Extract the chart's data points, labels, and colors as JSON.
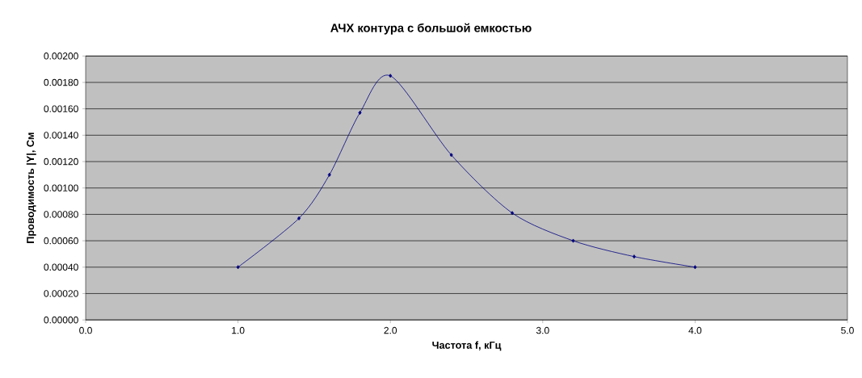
{
  "chart_data": {
    "type": "line",
    "title": "АЧХ контура с большой емкостью",
    "xlabel": "Частота f, кГц",
    "ylabel": "Проводимость |Y|, См",
    "x": [
      1.0,
      1.4,
      1.6,
      1.8,
      2.0,
      2.4,
      2.8,
      3.2,
      3.6,
      4.0
    ],
    "values": [
      0.0004,
      0.00077,
      0.0011,
      0.00157,
      0.00185,
      0.00125,
      0.00081,
      0.0006,
      0.00048,
      0.0004
    ],
    "color": "#000080",
    "marker": "diamond",
    "line_style": "solid",
    "grid": "y",
    "xlim": [
      0,
      5
    ],
    "ylim": [
      0,
      0.002
    ],
    "xticks": [
      {
        "value": 0,
        "label": "0.0"
      },
      {
        "value": 1,
        "label": "1.0"
      },
      {
        "value": 2,
        "label": "2.0"
      },
      {
        "value": 3,
        "label": "3.0"
      },
      {
        "value": 4,
        "label": "4.0"
      },
      {
        "value": 5,
        "label": "5.0"
      }
    ],
    "yticks": [
      {
        "value": 0,
        "label": "0.00000"
      },
      {
        "value": 0.0002,
        "label": "0.00020"
      },
      {
        "value": 0.0004,
        "label": "0.00040"
      },
      {
        "value": 0.0006,
        "label": "0.00060"
      },
      {
        "value": 0.0008,
        "label": "0.00080"
      },
      {
        "value": 0.001,
        "label": "0.00100"
      },
      {
        "value": 0.0012,
        "label": "0.00120"
      },
      {
        "value": 0.0014,
        "label": "0.00140"
      },
      {
        "value": 0.0016,
        "label": "0.00160"
      },
      {
        "value": 0.0018,
        "label": "0.00180"
      },
      {
        "value": 0.002,
        "label": "0.00200"
      }
    ]
  }
}
